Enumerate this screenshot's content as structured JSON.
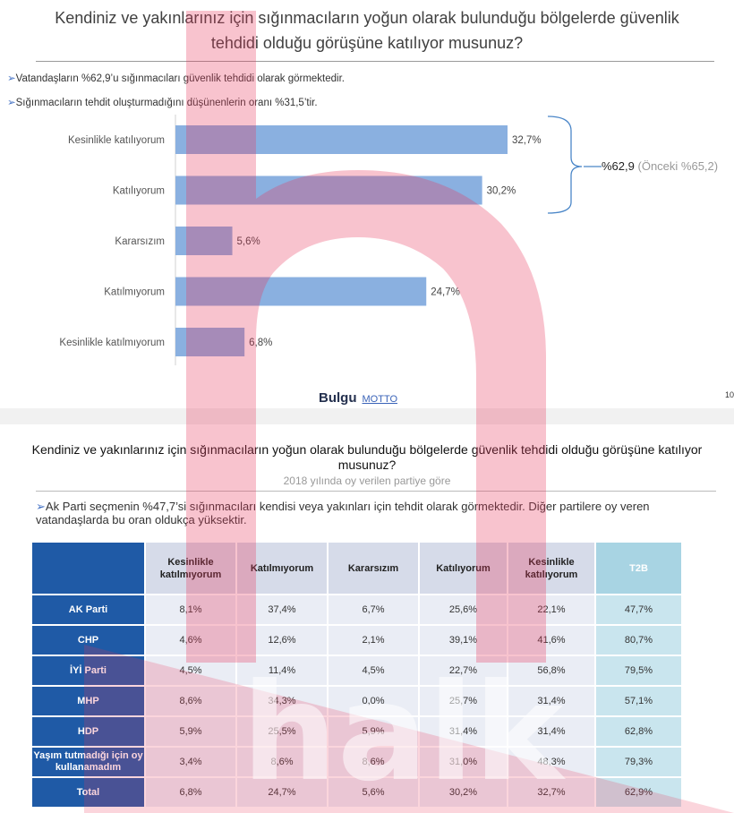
{
  "slide1": {
    "title": "Kendiniz ve yakınlarınız için sığınmacıların yoğun olarak bulunduğu bölgelerde güvenlik tehdidi olduğu görüşüne katılıyor musunuz?",
    "bullets": [
      "Vatandaşların %62,9’u sığınmacıları güvenlik tehdidi olarak görmektedir.",
      "Sığınmacıların tehdit oluşturmadığını düşünenlerin oranı %31,5’tir."
    ],
    "brace_value": "%62,9",
    "brace_previous": "(Önceki %65,2)",
    "logo_main": "Bulgu",
    "logo_second": "MOTTO",
    "page_number": "10"
  },
  "chart_data": {
    "type": "bar",
    "orientation": "horizontal",
    "categories": [
      "Kesinlikle katılıyorum",
      "Katılıyorum",
      "Kararsızım",
      "Katılmıyorum",
      "Kesinlikle katılmıyorum"
    ],
    "values": [
      32.7,
      30.2,
      5.6,
      24.7,
      6.8
    ],
    "value_labels": [
      "32,7%",
      "30,2%",
      "5,6%",
      "24,7%",
      "6,8%"
    ],
    "bar_color": "#8ab0e0",
    "xlim": [
      0,
      40
    ],
    "grid": false,
    "legend": "none"
  },
  "slide2": {
    "title": "Kendiniz ve yakınlarınız için sığınmacıların yoğun olarak bulunduğu bölgelerde güvenlik tehdidi olduğu görüşüne katılıyor musunuz?",
    "subtitle": "2018 yılında oy verilen partiye göre",
    "bullet": "Ak Parti seçmenin %47,7’si sığınmacıları kendisi veya yakınları için tehdit olarak görmektedir. Diğer partilere oy veren vatandaşlarda  bu oran oldukça yüksektir."
  },
  "table": {
    "columns": [
      "Kesinlikle katılmıyorum",
      "Katılmıyorum",
      "Kararsızım",
      "Katılıyorum",
      "Kesinlikle katılıyorum",
      "T2B"
    ],
    "rows": [
      {
        "label": "AK Parti",
        "values": [
          "8,1%",
          "37,4%",
          "6,7%",
          "25,6%",
          "22,1%",
          "47,7%"
        ]
      },
      {
        "label": "CHP",
        "values": [
          "4,6%",
          "12,6%",
          "2,1%",
          "39,1%",
          "41,6%",
          "80,7%"
        ]
      },
      {
        "label": "İYİ Parti",
        "values": [
          "4,5%",
          "11,4%",
          "4,5%",
          "22,7%",
          "56,8%",
          "79,5%"
        ]
      },
      {
        "label": "MHP",
        "values": [
          "8,6%",
          "34,3%",
          "0,0%",
          "25,7%",
          "31,4%",
          "57,1%"
        ]
      },
      {
        "label": "HDP",
        "values": [
          "5,9%",
          "25,5%",
          "5,9%",
          "31,4%",
          "31,4%",
          "62,8%"
        ]
      },
      {
        "label": "Yaşım tutmadığı için oy kullanamadım",
        "values": [
          "3,4%",
          "8,6%",
          "8,6%",
          "31,0%",
          "48,3%",
          "79,3%"
        ]
      },
      {
        "label": "Total",
        "values": [
          "6,8%",
          "24,7%",
          "5,6%",
          "30,2%",
          "32,7%",
          "62,9%"
        ]
      }
    ]
  },
  "watermark": {
    "letter": "h",
    "text": "halk",
    "color": "#e8365a"
  }
}
